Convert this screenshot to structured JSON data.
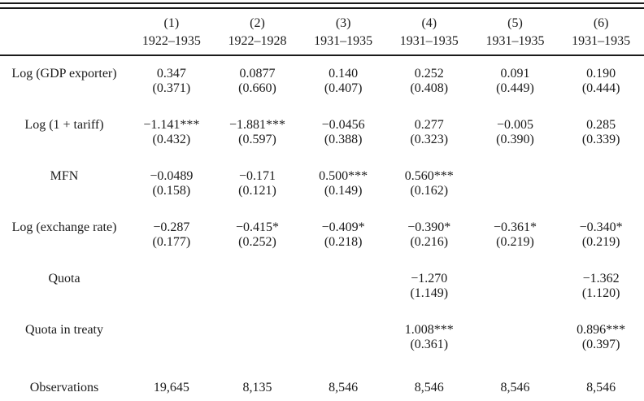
{
  "table": {
    "columns": [
      {
        "number": "(1)",
        "period": "1922–1935"
      },
      {
        "number": "(2)",
        "period": "1922–1928"
      },
      {
        "number": "(3)",
        "period": "1931–1935"
      },
      {
        "number": "(4)",
        "period": "1931–1935"
      },
      {
        "number": "(5)",
        "period": "1931–1935"
      },
      {
        "number": "(6)",
        "period": "1931–1935"
      }
    ],
    "rows": [
      {
        "label": "Log (GDP exporter)",
        "cells": [
          {
            "coef": "0.347",
            "se": "(0.371)"
          },
          {
            "coef": "0.0877",
            "se": "(0.660)"
          },
          {
            "coef": "0.140",
            "se": "(0.407)"
          },
          {
            "coef": "0.252",
            "se": "(0.408)"
          },
          {
            "coef": "0.091",
            "se": "(0.449)"
          },
          {
            "coef": "0.190",
            "se": "(0.444)"
          }
        ]
      },
      {
        "label": "Log (1 + tariff)",
        "cells": [
          {
            "coef": "−1.141***",
            "se": "(0.432)"
          },
          {
            "coef": "−1.881***",
            "se": "(0.597)"
          },
          {
            "coef": "−0.0456",
            "se": "(0.388)"
          },
          {
            "coef": "0.277",
            "se": "(0.323)"
          },
          {
            "coef": "−0.005",
            "se": "(0.390)"
          },
          {
            "coef": "0.285",
            "se": "(0.339)"
          }
        ]
      },
      {
        "label": "MFN",
        "cells": [
          {
            "coef": "−0.0489",
            "se": "(0.158)"
          },
          {
            "coef": "−0.171",
            "se": "(0.121)"
          },
          {
            "coef": "0.500***",
            "se": "(0.149)"
          },
          {
            "coef": "0.560***",
            "se": "(0.162)"
          },
          {
            "coef": "",
            "se": ""
          },
          {
            "coef": "",
            "se": ""
          }
        ]
      },
      {
        "label": "Log (exchange rate)",
        "cells": [
          {
            "coef": "−0.287",
            "se": "(0.177)"
          },
          {
            "coef": "−0.415*",
            "se": "(0.252)"
          },
          {
            "coef": "−0.409*",
            "se": "(0.218)"
          },
          {
            "coef": "−0.390*",
            "se": "(0.216)"
          },
          {
            "coef": "−0.361*",
            "se": "(0.219)"
          },
          {
            "coef": "−0.340*",
            "se": "(0.219)"
          }
        ]
      },
      {
        "label": "Quota",
        "cells": [
          {
            "coef": "",
            "se": ""
          },
          {
            "coef": "",
            "se": ""
          },
          {
            "coef": "",
            "se": ""
          },
          {
            "coef": "−1.270",
            "se": "(1.149)"
          },
          {
            "coef": "",
            "se": ""
          },
          {
            "coef": "−1.362",
            "se": "(1.120)"
          }
        ]
      },
      {
        "label": "Quota in treaty",
        "cells": [
          {
            "coef": "",
            "se": ""
          },
          {
            "coef": "",
            "se": ""
          },
          {
            "coef": "",
            "se": ""
          },
          {
            "coef": "1.008***",
            "se": "(0.361)"
          },
          {
            "coef": "",
            "se": ""
          },
          {
            "coef": "0.896***",
            "se": "(0.397)"
          }
        ]
      }
    ],
    "observations": {
      "label": "Observations",
      "values": [
        "19,645",
        "8,135",
        "8,546",
        "8,546",
        "8,546",
        "8,546"
      ]
    }
  }
}
